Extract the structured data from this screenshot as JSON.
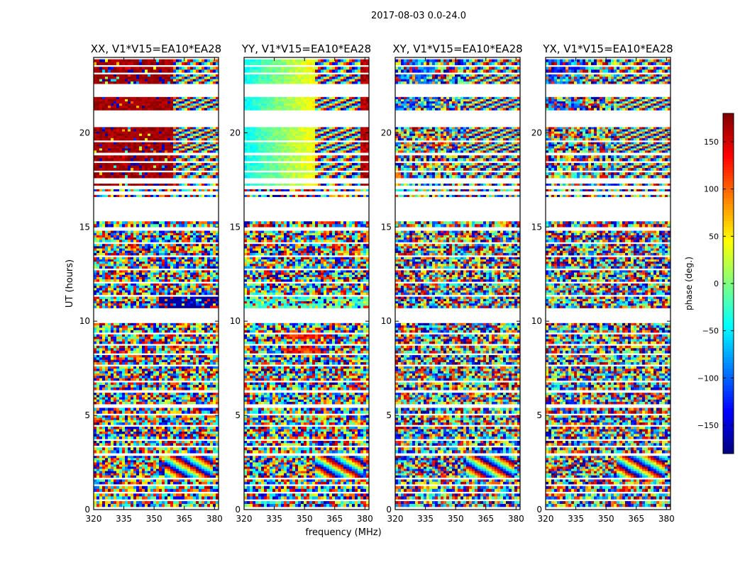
{
  "figure": {
    "suptitle": "2017-08-03 0.0-24.0",
    "ylabel": "UT (hours)",
    "xlabel": "frequency (MHz)"
  },
  "chart_data": {
    "type": "heatmap",
    "title": "2017-08-03 0.0-24.0",
    "xlabel": "frequency (MHz)",
    "ylabel": "UT (hours)",
    "xlim": [
      320,
      382
    ],
    "ylim": [
      0,
      24
    ],
    "xticks": [
      320,
      335,
      350,
      365,
      380
    ],
    "yticks": [
      0,
      5,
      10,
      15,
      20
    ],
    "colorbar": {
      "label": "phase (deg.)",
      "range": [
        -180,
        180
      ],
      "ticks": [
        -150,
        -100,
        -50,
        0,
        50,
        100,
        150
      ],
      "colormap": "jet",
      "colors": [
        "#00007f",
        "#0000ff",
        "#007fff",
        "#00ffff",
        "#7fff7f",
        "#ffff00",
        "#ff7f00",
        "#ff0000",
        "#7f0000"
      ]
    },
    "panels": [
      {
        "title": "XX, V1*V15=EA10*EA28",
        "pol": "XX",
        "style": "xx"
      },
      {
        "title": "YY, V1*V15=EA10*EA28",
        "pol": "YY",
        "style": "yy"
      },
      {
        "title": "XY, V1*V15=EA10*EA28",
        "pol": "XY",
        "style": "noise"
      },
      {
        "title": "YX, V1*V15=EA10*EA28",
        "pol": "YX",
        "style": "noise"
      }
    ],
    "data_segments_hours": [
      [
        0.15,
        0.45
      ],
      [
        0.55,
        0.85
      ],
      [
        0.95,
        1.25
      ],
      [
        1.35,
        1.6
      ],
      [
        1.7,
        2.85
      ],
      [
        3.0,
        3.3
      ],
      [
        3.4,
        3.65
      ],
      [
        3.75,
        4.4
      ],
      [
        4.5,
        5.0
      ],
      [
        5.1,
        5.4
      ],
      [
        5.6,
        6.2
      ],
      [
        6.35,
        6.75
      ],
      [
        6.85,
        7.6
      ],
      [
        7.7,
        8.2
      ],
      [
        8.3,
        8.7
      ],
      [
        8.8,
        9.3
      ],
      [
        9.4,
        9.9
      ],
      [
        10.7,
        11.3
      ],
      [
        11.4,
        12.0
      ],
      [
        12.1,
        12.7
      ],
      [
        12.8,
        13.4
      ],
      [
        13.5,
        14.1
      ],
      [
        14.2,
        14.8
      ],
      [
        15.0,
        15.3
      ],
      [
        16.6,
        16.7
      ],
      [
        16.9,
        17.0
      ],
      [
        17.2,
        17.3
      ],
      [
        17.6,
        17.9
      ],
      [
        18.0,
        18.4
      ],
      [
        18.5,
        18.8
      ],
      [
        18.95,
        19.5
      ],
      [
        19.6,
        20.3
      ],
      [
        21.2,
        21.9
      ],
      [
        22.6,
        23.1
      ],
      [
        23.2,
        23.5
      ],
      [
        23.6,
        23.9
      ]
    ]
  }
}
